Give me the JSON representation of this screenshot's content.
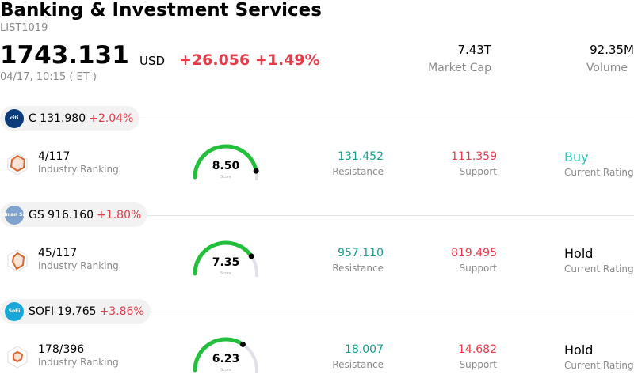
{
  "header": {
    "title": "Banking & Investment Services",
    "ticker": "LIST1019",
    "price": "1743.131",
    "currency": "USD",
    "change": "+26.056 +1.49%",
    "time": "04/17, 10:15  ( ET )",
    "market_cap_value": "7.43T",
    "market_cap_label": "Market Cap",
    "volume_value": "92.35M",
    "volume_label": "Volume"
  },
  "stocks": [
    {
      "symbol_price": "C 131.980",
      "pct": "+2.04%",
      "logo_text": "citi",
      "logo_color": "#0b3c7a",
      "rank": "4/117",
      "rank_label": "Industry Ranking",
      "score": "8.50",
      "score_fraction": 0.85,
      "score_label": "Score",
      "resistance": "131.452",
      "resistance_label": "Resistance",
      "support": "111.359",
      "support_label": "Support",
      "rating": "Buy",
      "rating_color": "#2ec4b6",
      "rating_label": "Current Rating"
    },
    {
      "symbol_price": "GS 916.160",
      "pct": "+1.80%",
      "logo_text": "Goldman Sachs",
      "logo_color": "#7fa2cf",
      "rank": "45/117",
      "rank_label": "Industry Ranking",
      "score": "7.35",
      "score_fraction": 0.735,
      "score_label": "Score",
      "resistance": "957.110",
      "resistance_label": "Resistance",
      "support": "819.495",
      "support_label": "Support",
      "rating": "Hold",
      "rating_color": "#000000",
      "rating_label": "Current Rating"
    },
    {
      "symbol_price": "SOFI 19.765",
      "pct": "+3.86%",
      "logo_text": "SoFi",
      "logo_color": "#18a7d6",
      "rank": "178/396",
      "rank_label": "Industry Ranking",
      "score": "6.23",
      "score_fraction": 0.623,
      "score_label": "Score",
      "resistance": "18.007",
      "resistance_label": "Resistance",
      "support": "14.682",
      "support_label": "Support",
      "rating": "Hold",
      "rating_color": "#000000",
      "rating_label": "Current Rating"
    }
  ]
}
